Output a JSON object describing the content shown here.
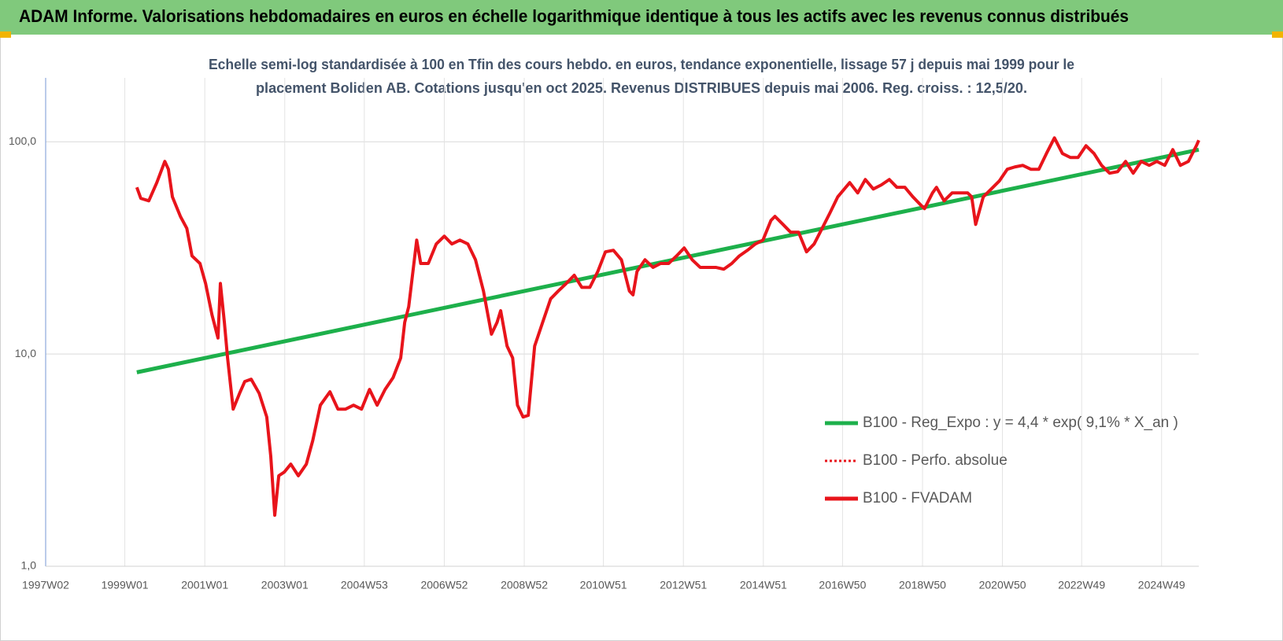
{
  "header": {
    "title": "ADAM Informe. Valorisations hebdomadaires en euros en échelle logarithmique identique à tous les actifs avec les revenus connus distribués"
  },
  "chart_data": {
    "type": "line",
    "title": [
      "Echelle semi-log standardisée à 100 en Tfin des cours hebdo. en euros, tendance exponentielle, lissage 57 j depuis mai 1999 pour le",
      "placement Boliden AB. Cotations jusqu'en oct 2025. Revenus DISTRIBUES depuis mai 2006. Reg. croiss. : 12,5/20."
    ],
    "log_scale": true,
    "grid": true,
    "legend": "right",
    "xlim": [
      1997.02,
      2025.86
    ],
    "xticks": [
      {
        "value": 1997.02,
        "label": "1997W02"
      },
      {
        "value": 1999.0,
        "label": "1999W01"
      },
      {
        "value": 2001.0,
        "label": "2001W01"
      },
      {
        "value": 2003.0,
        "label": "2003W01"
      },
      {
        "value": 2004.99,
        "label": "2004W53"
      },
      {
        "value": 2006.99,
        "label": "2006W52"
      },
      {
        "value": 2008.99,
        "label": "2008W52"
      },
      {
        "value": 2010.97,
        "label": "2010W51"
      },
      {
        "value": 2012.97,
        "label": "2012W51"
      },
      {
        "value": 2014.97,
        "label": "2014W51"
      },
      {
        "value": 2016.95,
        "label": "2016W50"
      },
      {
        "value": 2018.95,
        "label": "2018W50"
      },
      {
        "value": 2020.95,
        "label": "2020W50"
      },
      {
        "value": 2022.93,
        "label": "2022W49"
      },
      {
        "value": 2024.93,
        "label": "2024W49"
      }
    ],
    "ylim": [
      1,
      200
    ],
    "yticks": [
      {
        "value": 1,
        "label": "1,0"
      },
      {
        "value": 10,
        "label": "10,0"
      },
      {
        "value": 100,
        "label": "100,0"
      }
    ],
    "series": [
      {
        "name": "B100 - Reg_Expo : y = 4,4 * exp( 9,1% *  X_an )",
        "color": "#1db04b",
        "style": "solid",
        "x": [
          1999.3,
          2025.86
        ],
        "values": [
          8.2,
          91.8
        ]
      },
      {
        "name": "B100 - Perfo. absolue",
        "color": "#e8141b",
        "style": "dotted",
        "x": [],
        "values": []
      },
      {
        "name": "B100 - FVADAM",
        "color": "#e8141b",
        "style": "solid",
        "x": [
          1999.3,
          1999.4,
          1999.6,
          1999.8,
          2000.0,
          2000.09,
          2000.19,
          2000.39,
          2000.55,
          2000.68,
          2000.88,
          2001.02,
          2001.18,
          2001.33,
          2001.39,
          2001.49,
          2001.57,
          2001.71,
          2001.87,
          2002.0,
          2002.16,
          2002.36,
          2002.55,
          2002.65,
          2002.75,
          2002.85,
          2002.99,
          2003.15,
          2003.34,
          2003.54,
          2003.7,
          2003.89,
          2004.13,
          2004.33,
          2004.52,
          2004.72,
          2004.92,
          2005.12,
          2005.31,
          2005.51,
          2005.71,
          2005.9,
          2006.0,
          2006.1,
          2006.3,
          2006.4,
          2006.59,
          2006.79,
          2006.99,
          2007.18,
          2007.38,
          2007.58,
          2007.77,
          2007.97,
          2008.17,
          2008.31,
          2008.4,
          2008.56,
          2008.7,
          2008.82,
          2008.96,
          2009.09,
          2009.25,
          2009.45,
          2009.65,
          2009.84,
          2010.04,
          2010.24,
          2010.43,
          2010.63,
          2010.83,
          2011.02,
          2011.22,
          2011.42,
          2011.62,
          2011.71,
          2011.81,
          2012.01,
          2012.21,
          2012.4,
          2012.6,
          2012.8,
          2012.99,
          2013.19,
          2013.39,
          2013.58,
          2013.78,
          2013.98,
          2014.18,
          2014.37,
          2014.57,
          2014.77,
          2014.96,
          2015.16,
          2015.26,
          2015.46,
          2015.65,
          2015.85,
          2016.05,
          2016.24,
          2016.44,
          2016.64,
          2016.83,
          2017.13,
          2017.33,
          2017.52,
          2017.72,
          2017.92,
          2018.12,
          2018.31,
          2018.51,
          2018.71,
          2018.9,
          2019.0,
          2019.2,
          2019.3,
          2019.49,
          2019.69,
          2019.89,
          2020.08,
          2020.18,
          2020.28,
          2020.47,
          2020.67,
          2020.87,
          2021.07,
          2021.26,
          2021.46,
          2021.66,
          2021.86,
          2022.05,
          2022.25,
          2022.45,
          2022.65,
          2022.84,
          2023.04,
          2023.24,
          2023.43,
          2023.63,
          2023.83,
          2024.03,
          2024.22,
          2024.42,
          2024.62,
          2024.81,
          2025.01,
          2025.21,
          2025.4,
          2025.6,
          2025.8,
          2025.86
        ],
        "values": [
          61.0,
          54.1,
          52.7,
          64.2,
          80.8,
          74.2,
          55.0,
          44.5,
          39.1,
          29.0,
          26.7,
          21.5,
          15.3,
          11.9,
          21.5,
          14.1,
          9.58,
          5.5,
          6.53,
          7.42,
          7.61,
          6.53,
          5.05,
          3.3,
          1.74,
          2.67,
          2.78,
          3.03,
          2.67,
          3.03,
          3.91,
          5.74,
          6.64,
          5.5,
          5.5,
          5.74,
          5.5,
          6.81,
          5.74,
          6.81,
          7.74,
          9.58,
          14.1,
          16.7,
          34.4,
          26.7,
          26.7,
          33.0,
          35.9,
          33.0,
          34.4,
          33.0,
          27.8,
          19.8,
          12.4,
          14.1,
          16.0,
          10.9,
          9.58,
          5.74,
          5.05,
          5.14,
          10.9,
          14.1,
          18.2,
          19.8,
          21.5,
          23.5,
          20.6,
          20.6,
          24.5,
          30.3,
          30.8,
          27.8,
          19.8,
          19.0,
          24.5,
          27.8,
          25.6,
          26.7,
          26.7,
          29.0,
          31.6,
          27.8,
          25.6,
          25.6,
          25.6,
          25.1,
          26.7,
          29.0,
          30.8,
          33.0,
          34.4,
          42.6,
          44.5,
          40.8,
          37.5,
          37.5,
          30.3,
          33.0,
          39.1,
          46.4,
          55.0,
          64.2,
          57.4,
          66.4,
          59.9,
          62.6,
          66.4,
          61.0,
          61.0,
          55.0,
          50.5,
          48.4,
          57.4,
          61.0,
          52.7,
          57.4,
          57.4,
          57.4,
          55.0,
          40.8,
          55.0,
          59.9,
          65.3,
          74.2,
          76.1,
          77.4,
          74.2,
          74.2,
          88.0,
          104.3,
          88.0,
          84.3,
          84.3,
          95.8,
          88.0,
          77.4,
          71.1,
          72.3,
          80.8,
          71.1,
          80.8,
          77.4,
          80.8,
          77.4,
          91.8,
          77.4,
          80.8,
          95.8,
          101.7
        ]
      }
    ]
  }
}
